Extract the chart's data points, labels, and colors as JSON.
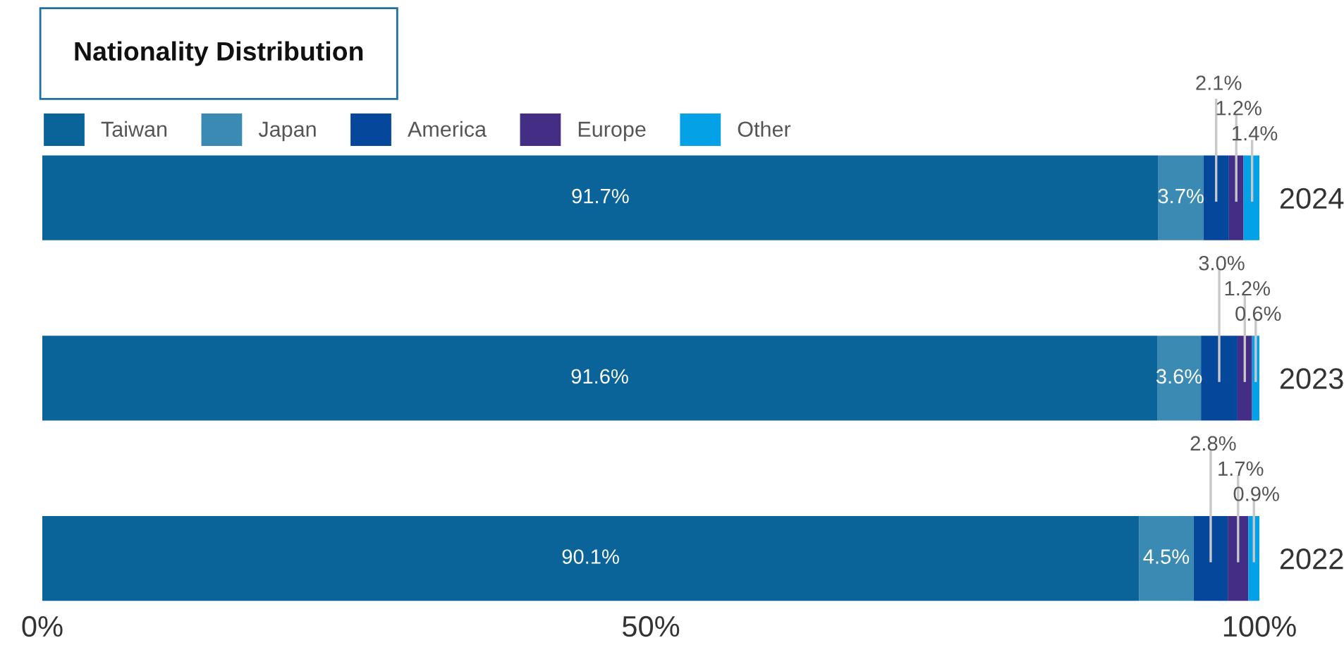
{
  "chart_data": {
    "type": "bar",
    "orientation": "horizontal",
    "stacked": true,
    "title": "Nationality Distribution",
    "categories": [
      "2024",
      "2023",
      "2022"
    ],
    "series": [
      {
        "name": "Taiwan",
        "color": "#0a6399",
        "values": [
          91.7,
          91.6,
          90.1
        ],
        "value_labels": [
          "91.7%",
          "91.6%",
          "90.1%"
        ]
      },
      {
        "name": "Japan",
        "color": "#3a8ab3",
        "values": [
          3.7,
          3.6,
          4.5
        ],
        "value_labels": [
          "3.7%",
          "3.6%",
          "4.5%"
        ]
      },
      {
        "name": "America",
        "color": "#04479b",
        "values": [
          2.1,
          3.0,
          2.8
        ],
        "value_labels": [
          "2.1%",
          "3.0%",
          "2.8%"
        ]
      },
      {
        "name": "Europe",
        "color": "#432d85",
        "values": [
          1.2,
          1.2,
          1.7
        ],
        "value_labels": [
          "1.2%",
          "1.2%",
          "1.7%"
        ]
      },
      {
        "name": "Other",
        "color": "#05a1e6",
        "values": [
          1.4,
          0.6,
          0.9
        ],
        "value_labels": [
          "1.4%",
          "0.6%",
          "0.9%"
        ]
      }
    ],
    "xlim": [
      0,
      100
    ],
    "xticks": [
      {
        "value": 0,
        "label": "0%"
      },
      {
        "value": 50,
        "label": "50%"
      },
      {
        "value": 100,
        "label": "100%"
      }
    ],
    "grid": false,
    "legend": "top left"
  }
}
